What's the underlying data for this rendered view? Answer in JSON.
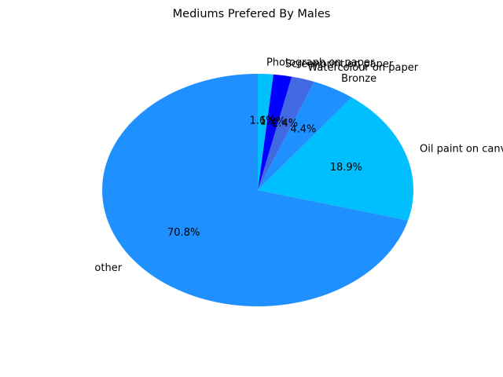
{
  "chart_data": {
    "type": "pie",
    "title": "Mediums Prefered By Males",
    "slices": [
      {
        "label": "other",
        "value": 70.8,
        "pct_label": "70.8%",
        "color": "#1E90FF"
      },
      {
        "label": "Oil paint on canvas",
        "value": 18.9,
        "pct_label": "18.9%",
        "color": "#00BFFF"
      },
      {
        "label": "Bronze",
        "value": 4.4,
        "pct_label": "4.4%",
        "color": "#1E90FF"
      },
      {
        "label": "Watercolour on paper",
        "value": 2.4,
        "pct_label": "2.4%",
        "color": "#4169E1"
      },
      {
        "label": "Screenprint on paper",
        "value": 1.9,
        "pct_label": "1.9%",
        "color": "#0000FF"
      },
      {
        "label": "Photograph on paper",
        "value": 1.6,
        "pct_label": "1.6%",
        "color": "#00BFFF"
      }
    ],
    "start_angle_deg": 90,
    "direction": "counterclockwise",
    "legend": "none"
  }
}
